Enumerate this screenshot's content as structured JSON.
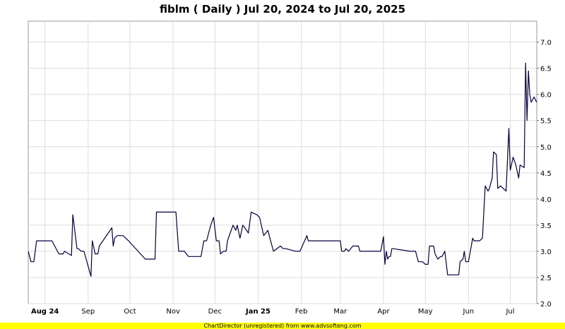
{
  "chart_data": {
    "type": "line",
    "title": "fiblm ( Daily ) Jul 20, 2024 to Jul 20, 2025",
    "xlabel": "",
    "ylabel": "",
    "ylim": [
      2.0,
      7.4
    ],
    "y_ticks": [
      2.0,
      2.5,
      3.0,
      3.5,
      4.0,
      4.5,
      5.0,
      5.5,
      6.0,
      6.5,
      7.0
    ],
    "y_tick_labels": [
      "2.0",
      "2.5",
      "3.0",
      "3.5",
      "4.0",
      "4.5",
      "5.0",
      "5.5",
      "6.0",
      "6.5",
      "7.0"
    ],
    "x_ticks": [
      {
        "date": "2024-08-01",
        "label": "Aug 24",
        "bold": true
      },
      {
        "date": "2024-09-01",
        "label": "Sep",
        "bold": false
      },
      {
        "date": "2024-10-01",
        "label": "Oct",
        "bold": false
      },
      {
        "date": "2024-11-01",
        "label": "Nov",
        "bold": false
      },
      {
        "date": "2024-12-01",
        "label": "Dec",
        "bold": false
      },
      {
        "date": "2025-01-01",
        "label": "Jan 25",
        "bold": true
      },
      {
        "date": "2025-02-01",
        "label": "Feb",
        "bold": false
      },
      {
        "date": "2025-03-01",
        "label": "Mar",
        "bold": false
      },
      {
        "date": "2025-04-01",
        "label": "Apr",
        "bold": false
      },
      {
        "date": "2025-05-01",
        "label": "May",
        "bold": false
      },
      {
        "date": "2025-06-01",
        "label": "Jun",
        "bold": false
      },
      {
        "date": "2025-07-01",
        "label": "Jul",
        "bold": false
      }
    ],
    "xlim": [
      "2024-07-20",
      "2025-07-20"
    ],
    "grid": true,
    "y_axis_side": "right",
    "line_color": "#000040",
    "series": [
      {
        "x": [
          "2024-07-20",
          "2024-07-22",
          "2024-07-24",
          "2024-07-26",
          "2024-08-02",
          "2024-08-06",
          "2024-08-11",
          "2024-08-13",
          "2024-08-14",
          "2024-08-15",
          "2024-08-20",
          "2024-08-21",
          "2024-08-24",
          "2024-08-25",
          "2024-08-27",
          "2024-08-29",
          "2024-09-03",
          "2024-09-04",
          "2024-09-06",
          "2024-09-08",
          "2024-09-09",
          "2024-09-18",
          "2024-09-19",
          "2024-09-20",
          "2024-09-22",
          "2024-09-26",
          "2024-09-30",
          "2024-10-12",
          "2024-10-13",
          "2024-10-19",
          "2024-10-20",
          "2024-11-02",
          "2024-11-03",
          "2024-11-05",
          "2024-11-07",
          "2024-11-09",
          "2024-11-12",
          "2024-11-15",
          "2024-11-19",
          "2024-11-21",
          "2024-11-23",
          "2024-11-25",
          "2024-11-28",
          "2024-11-30",
          "2024-12-02",
          "2024-12-04",
          "2024-12-05",
          "2024-12-07",
          "2024-12-09",
          "2024-12-10",
          "2024-12-12",
          "2024-12-14",
          "2024-12-16",
          "2024-12-17",
          "2024-12-19",
          "2024-12-21",
          "2024-12-25",
          "2024-12-27",
          "2024-12-31",
          "2025-01-02",
          "2025-01-05",
          "2025-01-08",
          "2025-01-10",
          "2025-01-12",
          "2025-01-17",
          "2025-01-19",
          "2025-01-21",
          "2025-01-28",
          "2025-01-31",
          "2025-02-05",
          "2025-02-06",
          "2025-02-08",
          "2025-02-10",
          "2025-02-28",
          "2025-03-01",
          "2025-03-02",
          "2025-03-04",
          "2025-03-05",
          "2025-03-07",
          "2025-03-10",
          "2025-03-12",
          "2025-03-14",
          "2025-03-15",
          "2025-03-20",
          "2025-03-22",
          "2025-03-23",
          "2025-03-26",
          "2025-03-27",
          "2025-03-30",
          "2025-04-01",
          "2025-04-02",
          "2025-04-03",
          "2025-04-04",
          "2025-04-05",
          "2025-04-06",
          "2025-04-07",
          "2025-04-08",
          "2025-04-20",
          "2025-04-22",
          "2025-04-24",
          "2025-04-26",
          "2025-04-28",
          "2025-04-29",
          "2025-05-01",
          "2025-05-03",
          "2025-05-04",
          "2025-05-07",
          "2025-05-08",
          "2025-05-10",
          "2025-05-12",
          "2025-05-13",
          "2025-05-15",
          "2025-05-17",
          "2025-05-18",
          "2025-05-20",
          "2025-05-23",
          "2025-05-25",
          "2025-05-26",
          "2025-05-28",
          "2025-05-29",
          "2025-05-30",
          "2025-06-01",
          "2025-06-04",
          "2025-06-05",
          "2025-06-06",
          "2025-06-08",
          "2025-06-09",
          "2025-06-11",
          "2025-06-13",
          "2025-06-15",
          "2025-06-16",
          "2025-06-18",
          "2025-06-19",
          "2025-06-21",
          "2025-06-22",
          "2025-06-24",
          "2025-06-28",
          "2025-06-30",
          "2025-07-01",
          "2025-07-03",
          "2025-07-05",
          "2025-07-07",
          "2025-07-08",
          "2025-07-11",
          "2025-07-12",
          "2025-07-13",
          "2025-07-14",
          "2025-07-15",
          "2025-07-16",
          "2025-07-17",
          "2025-07-18",
          "2025-07-19",
          "2025-07-20"
        ],
        "values": [
          3.0,
          2.8,
          2.8,
          3.2,
          3.2,
          3.2,
          2.95,
          2.95,
          2.95,
          3.0,
          2.92,
          3.7,
          3.05,
          3.05,
          3.0,
          3.0,
          2.52,
          3.2,
          2.95,
          2.95,
          3.1,
          3.45,
          3.1,
          3.25,
          3.3,
          3.3,
          3.2,
          2.85,
          2.85,
          2.85,
          3.75,
          3.75,
          3.75,
          3.0,
          3.0,
          3.0,
          2.9,
          2.9,
          2.9,
          2.9,
          3.2,
          3.2,
          3.5,
          3.65,
          3.2,
          3.2,
          2.95,
          3.0,
          3.0,
          3.2,
          3.35,
          3.5,
          3.4,
          3.5,
          3.25,
          3.5,
          3.35,
          3.75,
          3.7,
          3.65,
          3.3,
          3.4,
          3.2,
          3.0,
          3.1,
          3.05,
          3.05,
          3.0,
          3.0,
          3.3,
          3.2,
          3.2,
          3.2,
          3.2,
          3.2,
          3.0,
          3.0,
          3.05,
          3.0,
          3.1,
          3.1,
          3.1,
          3.0,
          3.0,
          3.0,
          3.0,
          3.0,
          3.0,
          3.0,
          3.28,
          2.75,
          3.0,
          2.85,
          2.9,
          2.9,
          3.05,
          3.05,
          3.0,
          3.0,
          3.0,
          2.8,
          2.8,
          2.8,
          2.75,
          2.75,
          3.1,
          3.1,
          2.95,
          2.85,
          2.9,
          2.9,
          3.0,
          2.55,
          2.55,
          2.55,
          2.55,
          2.55,
          2.8,
          2.85,
          3.0,
          2.8,
          2.8,
          3.25,
          3.2,
          3.2,
          3.2,
          3.2,
          3.25,
          4.25,
          4.15,
          4.2,
          4.4,
          4.9,
          4.85,
          4.2,
          4.25,
          4.15,
          5.35,
          4.55,
          4.8,
          4.65,
          4.4,
          4.65,
          4.6,
          6.6,
          5.5,
          6.45,
          6.0,
          5.85,
          5.9,
          5.95,
          5.9,
          5.85
        ]
      }
    ],
    "footer_text": "ChartDirector (unregistered) from www.advsofteng.com"
  }
}
